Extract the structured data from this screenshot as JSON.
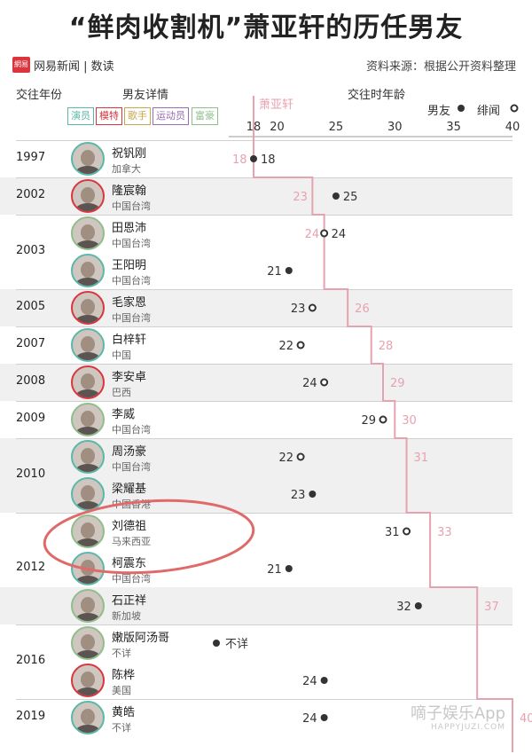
{
  "header": {
    "title": "“鲜肉收割机”萧亚轩的历任男友",
    "brand": "网易新闻 | 数读",
    "source": "资料来源：根据公开资料整理",
    "col_year": "交往年份",
    "col_detail": "男友详情",
    "col_age": "交往时年龄",
    "legend_bf": "男友",
    "legend_rumor": "绯闻",
    "line_label": "萧亚轩"
  },
  "tags": [
    {
      "label": "演员",
      "color": "#5bb8a9"
    },
    {
      "label": "模特",
      "color": "#d9363e"
    },
    {
      "label": "歌手",
      "color": "#c8a44a"
    },
    {
      "label": "运动员",
      "color": "#9b6bb5"
    },
    {
      "label": "富豪",
      "color": "#8fbe8c"
    }
  ],
  "colors": {
    "line": "#e7a2b0",
    "dot": "#333333",
    "shade": "#f0f0f0"
  },
  "watermark": {
    "main": "嘀子娱乐App",
    "sub": "HAPPYJUZI.COM"
  },
  "chart_data": {
    "type": "scatter",
    "title": "“鲜肉收割机”萧亚轩的历任男友",
    "xlabel": "交往时年龄",
    "xlim": [
      18,
      40
    ],
    "xticks": [
      18,
      20,
      25,
      30,
      35,
      40
    ],
    "legend": [
      "男友",
      "绯闻"
    ],
    "legend_position": "top-right",
    "series_xiao": {
      "name": "萧亚轩",
      "values": [
        18,
        23,
        24,
        26,
        28,
        29,
        30,
        31,
        33,
        37,
        40
      ]
    },
    "rows": [
      {
        "year": "1997",
        "name": "祝钒刚",
        "place": "加拿大",
        "age": 18,
        "kind": "男友",
        "xiao": 18,
        "shaded": false
      },
      {
        "year": "2002",
        "name": "隆宸翰",
        "place": "中国台湾",
        "age": 25,
        "kind": "男友",
        "xiao": 23,
        "shaded": true
      },
      {
        "year": "2003",
        "name": "田恩沛",
        "place": "中国台湾",
        "age": 24,
        "kind": "绯闻",
        "xiao": 24,
        "shaded": false
      },
      {
        "year": "",
        "name": "王阳明",
        "place": "中国台湾",
        "age": 21,
        "kind": "男友",
        "xiao": null,
        "shaded": false
      },
      {
        "year": "2005",
        "name": "毛家恩",
        "place": "中国台湾",
        "age": 23,
        "kind": "绯闻",
        "xiao": 26,
        "shaded": true
      },
      {
        "year": "2007",
        "name": "白梓轩",
        "place": "中国",
        "age": 22,
        "kind": "绯闻",
        "xiao": 28,
        "shaded": false
      },
      {
        "year": "2008",
        "name": "李安卓",
        "place": "巴西",
        "age": 24,
        "kind": "绯闻",
        "xiao": 29,
        "shaded": true
      },
      {
        "year": "2009",
        "name": "李威",
        "place": "中国台湾",
        "age": 29,
        "kind": "绯闻",
        "xiao": 30,
        "shaded": false
      },
      {
        "year": "2010",
        "name": "周汤豪",
        "place": "中国台湾",
        "age": 22,
        "kind": "绯闻",
        "xiao": 31,
        "shaded": true
      },
      {
        "year": "",
        "name": "梁耀基",
        "place": "中国香港",
        "age": 23,
        "kind": "男友",
        "xiao": null,
        "shaded": true
      },
      {
        "year": "2012",
        "name": "刘德祖",
        "place": "马来西亚",
        "age": 31,
        "kind": "绯闻",
        "xiao": 33,
        "shaded": false
      },
      {
        "year": "",
        "name": "柯震东",
        "place": "中国台湾",
        "age": 21,
        "kind": "男友",
        "xiao": null,
        "shaded": false
      },
      {
        "year": "",
        "name": "石正祥",
        "place": "新加坡",
        "age": 32,
        "kind": "男友",
        "xiao": 37,
        "shaded": true
      },
      {
        "year": "2016",
        "name": "嫩版阿汤哥",
        "place": "不详",
        "age": "不详",
        "kind": "男友",
        "xiao": null,
        "shaded": false
      },
      {
        "year": "",
        "name": "陈桦",
        "place": "美国",
        "age": 24,
        "kind": "男友",
        "xiao": null,
        "shaded": false
      },
      {
        "year": "2019",
        "name": "黄皓",
        "place": "不详",
        "age": 24,
        "kind": "男友",
        "xiao": 40,
        "shaded": false
      }
    ]
  }
}
